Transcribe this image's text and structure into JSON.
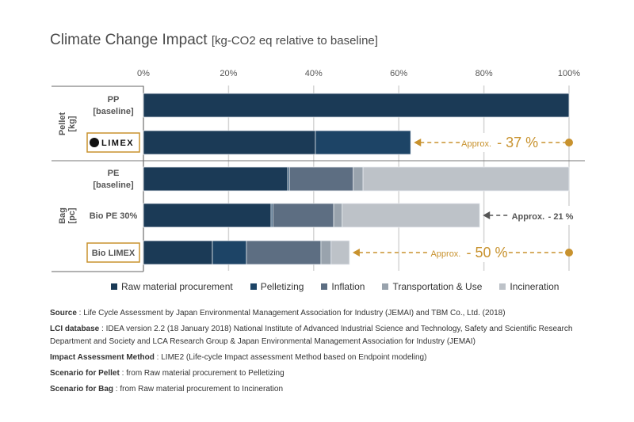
{
  "chart_data": {
    "type": "bar",
    "orientation": "horizontal",
    "stacked": true,
    "title": "Climate Change Impact",
    "title_unit": "[kg-CO2 eq relative to baseline]",
    "xlim": [
      0,
      100
    ],
    "xticks": [
      "0%",
      "20%",
      "40%",
      "60%",
      "80%",
      "100%"
    ],
    "groups": [
      {
        "label": "Pellet",
        "unit": "[kg]",
        "rows": [
          0,
          1
        ]
      },
      {
        "label": "Bag",
        "unit": "[pc]",
        "rows": [
          2,
          3,
          4
        ]
      }
    ],
    "categories": [
      [
        "PP",
        "[baseline]"
      ],
      [
        "LIMEX"
      ],
      [
        "PE",
        "[baseline]"
      ],
      [
        "Bio PE 30%"
      ],
      [
        "Bio LIMEX"
      ]
    ],
    "series": [
      {
        "name": "Raw material procurement",
        "color": "#1b3a56",
        "values": [
          100,
          40.4,
          33.9,
          30.0,
          16.2
        ]
      },
      {
        "name": "Pelletizing",
        "color": "#1d4466",
        "values": [
          0,
          22.4,
          0.4,
          0.4,
          8.0
        ]
      },
      {
        "name": "Inflation",
        "color": "#5d6e82",
        "values": [
          0,
          0,
          15.0,
          14.3,
          17.5
        ]
      },
      {
        "name": "Transportation & Use",
        "color": "#99a3ad",
        "values": [
          0,
          0,
          2.3,
          2.0,
          2.4
        ]
      },
      {
        "name": "Incineration",
        "color": "#bdc2c8",
        "values": [
          0,
          0,
          48.4,
          32.3,
          4.3
        ]
      }
    ],
    "annotations": [
      {
        "row": 1,
        "prefix": "Approx.",
        "value": "- 37 %",
        "color": "#c8922e"
      },
      {
        "row": 3,
        "prefix": "Approx.",
        "value": "- 21 %",
        "color": "#555555"
      },
      {
        "row": 4,
        "prefix": "Approx.",
        "value": "- 50 %",
        "color": "#c8922e"
      }
    ],
    "legend_position": "bottom",
    "grid": true
  },
  "notes": [
    {
      "label": "Source",
      "text": " : Life Cycle Assessment by Japan Environmental Management Association for Industry (JEMAI) and TBM Co., Ltd. (2018)"
    },
    {
      "label": "LCI database",
      "text": " : IDEA version 2.2 (18 January 2018) National Institute of Advanced Industrial Science and Technology, Safety and Scientific Research Department and Society and LCA Research Group & Japan Environmental Management Association for Industry (JEMAI)"
    },
    {
      "label": "Impact Assessment Method",
      "text": " : LIME2 (Life-cycle Impact assessment Method based on Endpoint modeling)"
    },
    {
      "label": "Scenario for Pellet",
      "text": " : from Raw material procurement to Pelletizing"
    },
    {
      "label": "Scenario for Bag",
      "text": " : from Raw material procurement to Incineration"
    }
  ]
}
